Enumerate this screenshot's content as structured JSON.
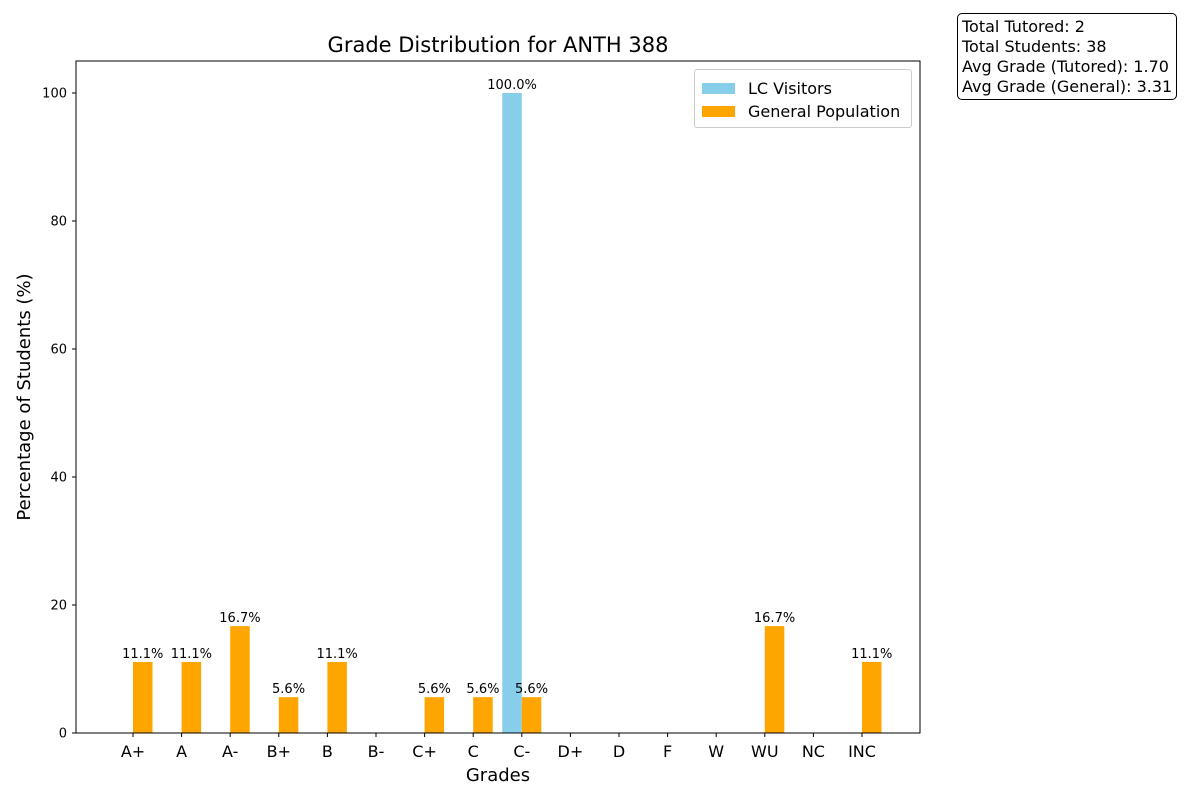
{
  "chart_data": {
    "type": "bar",
    "title": "Grade Distribution for ANTH 388",
    "xlabel": "Grades",
    "ylabel": "Percentage of Students (%)",
    "categories": [
      "A+",
      "A",
      "A-",
      "B+",
      "B",
      "B-",
      "C+",
      "C",
      "C-",
      "D+",
      "D",
      "F",
      "W",
      "WU",
      "NC",
      "INC"
    ],
    "ylim": [
      0,
      105
    ],
    "yticks": [
      0,
      20,
      40,
      60,
      80,
      100
    ],
    "grid": false,
    "legend_position": "top-right",
    "series": [
      {
        "name": "LC Visitors",
        "color": "#87CEEB",
        "values": [
          0,
          0,
          0,
          0,
          0,
          0,
          0,
          0,
          100.0,
          0,
          0,
          0,
          0,
          0,
          0,
          0
        ],
        "labels": [
          "",
          "",
          "",
          "",
          "",
          "",
          "",
          "",
          "100.0%",
          "",
          "",
          "",
          "",
          "",
          "",
          ""
        ]
      },
      {
        "name": "General Population",
        "color": "#FFA500",
        "values": [
          11.1,
          11.1,
          16.7,
          5.6,
          11.1,
          0,
          5.6,
          5.6,
          5.6,
          0,
          0,
          0,
          0,
          16.7,
          0,
          11.1
        ],
        "labels": [
          "11.1%",
          "11.1%",
          "16.7%",
          "5.6%",
          "11.1%",
          "",
          "5.6%",
          "5.6%",
          "5.6%",
          "",
          "",
          "",
          "",
          "16.7%",
          "",
          "11.1%"
        ]
      }
    ]
  },
  "stats": {
    "total_tutored": "Total Tutored: 2",
    "total_students": "Total Students: 38",
    "avg_tutored": "Avg Grade (Tutored): 1.70",
    "avg_general": "Avg Grade (General): 3.31"
  }
}
